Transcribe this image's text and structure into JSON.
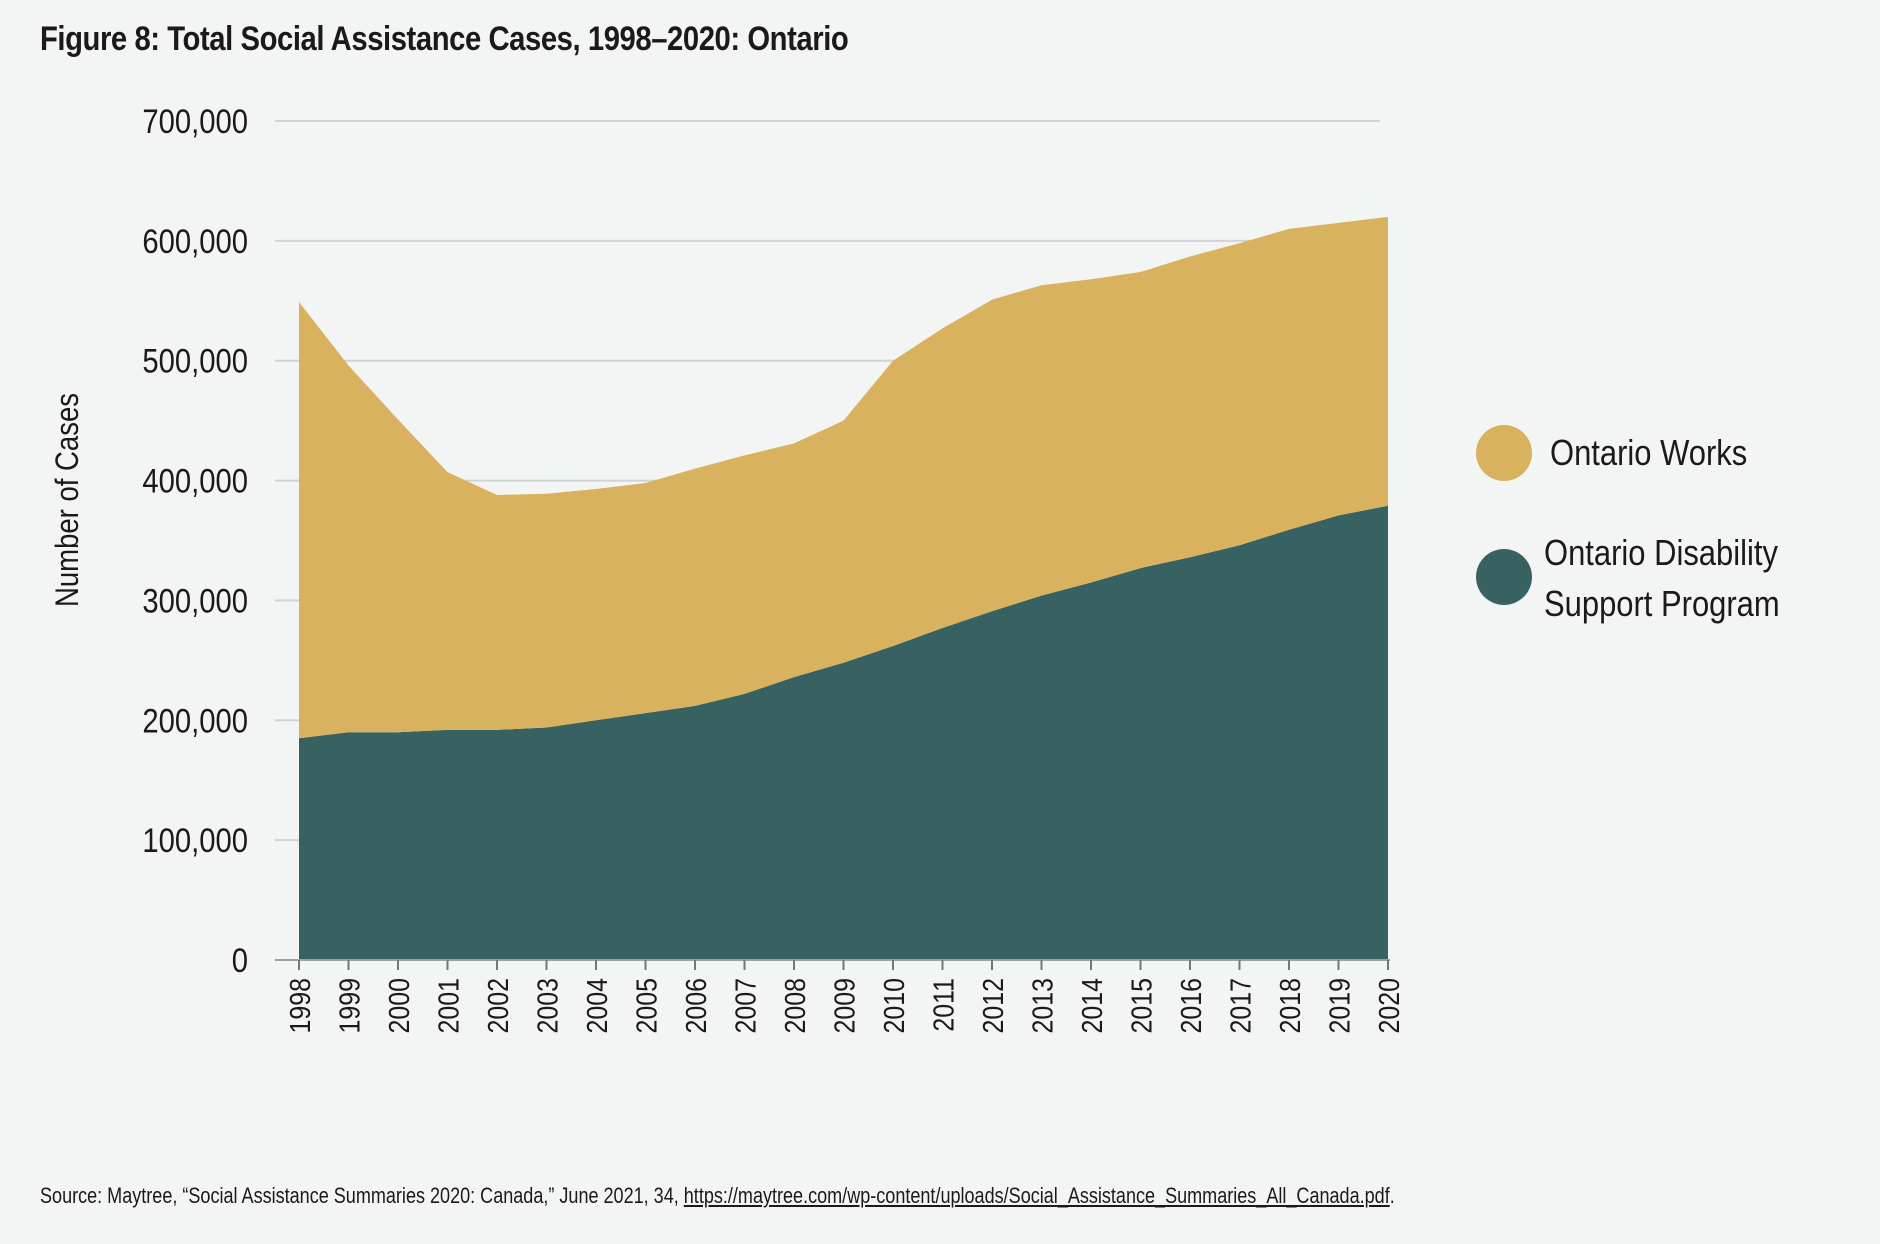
{
  "chart_data": {
    "type": "area",
    "stacked": true,
    "title": "Figure 8: Total Social Assistance Cases, 1998–2020: Ontario",
    "xlabel": "",
    "ylabel": "Number of Cases",
    "ylim": [
      0,
      700000
    ],
    "yticks": [
      0,
      100000,
      200000,
      300000,
      400000,
      500000,
      600000,
      700000
    ],
    "ytick_labels": [
      "0",
      "100,000",
      "200,000",
      "300,000",
      "400,000",
      "500,000",
      "600,000",
      "700,000"
    ],
    "grid": true,
    "legend_position": "right",
    "categories": [
      "1998",
      "1999",
      "2000",
      "2001",
      "2002",
      "2003",
      "2004",
      "2005",
      "2006",
      "2007",
      "2008",
      "2009",
      "2010",
      "2011",
      "2012",
      "2013",
      "2014",
      "2015",
      "2016",
      "2017",
      "2018",
      "2019",
      "2020"
    ],
    "series": [
      {
        "name": "Ontario Disability Support Program",
        "color": "#386261",
        "values": [
          185000,
          190000,
          190000,
          192000,
          192000,
          194000,
          200000,
          206000,
          212000,
          222000,
          236000,
          248000,
          262000,
          277000,
          291000,
          304000,
          315000,
          327000,
          336000,
          346000,
          359000,
          371000,
          379000
        ]
      },
      {
        "name": "Ontario Works",
        "color": "#d8b25e",
        "values": [
          364000,
          306000,
          261000,
          215000,
          196000,
          195000,
          193000,
          192000,
          198000,
          199000,
          195000,
          202000,
          238000,
          250000,
          260000,
          259000,
          253000,
          247000,
          251000,
          252000,
          251000,
          244000,
          241000
        ]
      }
    ]
  },
  "legend": [
    {
      "label_lines": [
        "Ontario Works"
      ],
      "color": "#d8b25e"
    },
    {
      "label_lines": [
        "Ontario Disability",
        "Support Program"
      ],
      "color": "#386261"
    }
  ],
  "source": {
    "text": "Source: Maytree, “Social Assistance Summaries 2020: Canada,” June 2021, 34, ",
    "link": "https://maytree.com/wp-content/uploads/Social_Assistance_Summaries_All_Canada.pdf",
    "end": "."
  }
}
